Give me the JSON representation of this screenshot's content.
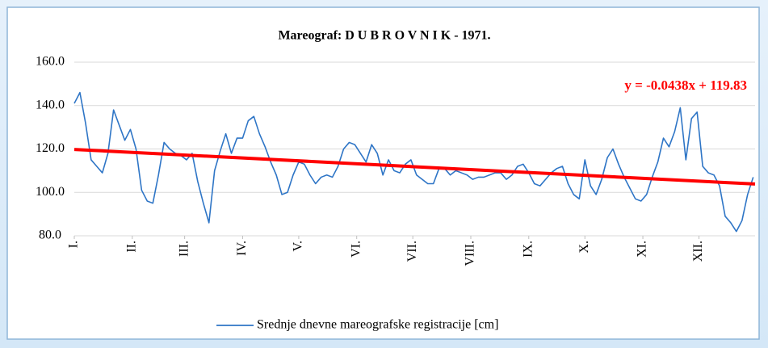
{
  "chart_data": {
    "type": "line",
    "title": "Mareograf: D U B R O V N I K - 1971.",
    "x": [
      1,
      4,
      7,
      10,
      13,
      16,
      19,
      22,
      25,
      28,
      31,
      34,
      37,
      40,
      43,
      46,
      49,
      52,
      55,
      58,
      61,
      64,
      67,
      70,
      73,
      76,
      79,
      82,
      85,
      88,
      91,
      94,
      97,
      100,
      103,
      106,
      109,
      112,
      115,
      118,
      121,
      124,
      127,
      130,
      133,
      136,
      139,
      142,
      145,
      148,
      151,
      154,
      157,
      160,
      163,
      166,
      169,
      172,
      175,
      178,
      181,
      184,
      187,
      190,
      193,
      196,
      199,
      202,
      205,
      208,
      211,
      214,
      217,
      220,
      223,
      226,
      229,
      232,
      235,
      238,
      241,
      244,
      247,
      250,
      253,
      256,
      259,
      262,
      265,
      268,
      271,
      274,
      277,
      280,
      283,
      286,
      289,
      292,
      295,
      298,
      301,
      304,
      307,
      310,
      313,
      316,
      319,
      322,
      325,
      328,
      331,
      334,
      337,
      340,
      343,
      346,
      349,
      352,
      355,
      358,
      361,
      364
    ],
    "series": [
      {
        "name": "Srednje dnevne mareografske registracije [cm]",
        "color": "#2e75c6",
        "values": [
          141,
          146,
          132,
          115,
          112,
          109,
          118,
          138,
          131,
          124,
          129,
          120,
          101,
          96,
          95,
          108,
          123,
          120,
          118,
          117,
          115,
          118,
          105,
          95,
          86,
          110,
          119,
          127,
          118,
          125,
          125,
          133,
          135,
          127,
          121,
          114,
          108,
          99,
          100,
          108,
          114,
          113,
          108,
          104,
          107,
          108,
          107,
          112,
          120,
          123,
          122,
          118,
          114,
          122,
          118,
          108,
          115,
          110,
          109,
          113,
          115,
          108,
          106,
          104,
          104,
          111,
          111,
          108,
          110,
          109,
          108,
          106,
          107,
          107,
          108,
          109,
          109,
          106,
          108,
          112,
          113,
          109,
          104,
          103,
          106,
          109,
          111,
          112,
          104,
          99,
          97,
          115,
          103,
          99,
          106,
          116,
          120,
          113,
          107,
          102,
          97,
          96,
          99,
          107,
          114,
          125,
          121,
          128,
          139,
          115,
          134,
          137,
          112,
          109,
          108,
          103,
          89,
          86,
          82,
          87,
          99,
          107
        ]
      }
    ],
    "trendline": {
      "label": "y = -0.0438x + 119.83",
      "slope": -0.0438,
      "intercept": 119.83,
      "color": "#ff0000"
    },
    "xlim": [
      1,
      365
    ],
    "xticks": [
      {
        "value": 1,
        "label": "I."
      },
      {
        "value": 32,
        "label": "II."
      },
      {
        "value": 60,
        "label": "III."
      },
      {
        "value": 91,
        "label": "IV."
      },
      {
        "value": 121,
        "label": "V."
      },
      {
        "value": 152,
        "label": "VI."
      },
      {
        "value": 182,
        "label": "VII."
      },
      {
        "value": 213,
        "label": "VIII."
      },
      {
        "value": 244,
        "label": "IX."
      },
      {
        "value": 274,
        "label": "X."
      },
      {
        "value": 305,
        "label": "XI."
      },
      {
        "value": 335,
        "label": "XII."
      }
    ],
    "ylim": [
      80,
      160
    ],
    "yticks": [
      {
        "value": 80,
        "label": "80.0"
      },
      {
        "value": 100,
        "label": "100.0"
      },
      {
        "value": 120,
        "label": "120.0"
      },
      {
        "value": 140,
        "label": "140.0"
      },
      {
        "value": 160,
        "label": "160.0"
      }
    ],
    "grid": true
  }
}
